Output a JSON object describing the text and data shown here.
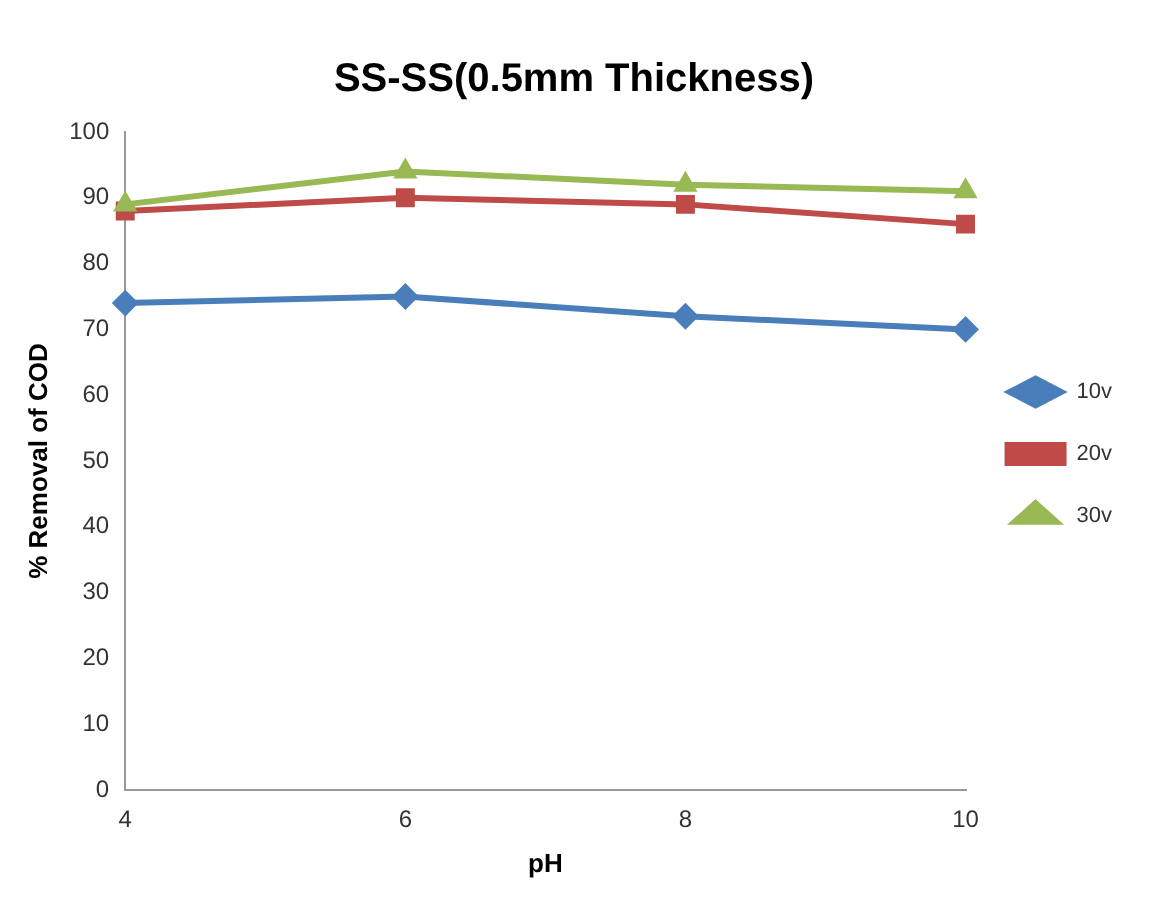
{
  "chart_data": {
    "type": "line",
    "title": "SS-SS(0.5mm Thickness)",
    "xlabel": "pH",
    "ylabel": "% Removal of COD",
    "categories": [
      "4",
      "6",
      "8",
      "10"
    ],
    "series": [
      {
        "name": "10v",
        "color": "#4a7ebb",
        "marker": "diamond",
        "values": [
          74,
          75,
          72,
          70
        ]
      },
      {
        "name": "20v",
        "color": "#be4b48",
        "marker": "square",
        "values": [
          88,
          90,
          89,
          86
        ]
      },
      {
        "name": "30v",
        "color": "#98b954",
        "marker": "triangle",
        "values": [
          89,
          94,
          92,
          91
        ]
      }
    ],
    "ylim": [
      0,
      100
    ],
    "yticks": [
      0,
      10,
      20,
      30,
      40,
      50,
      60,
      70,
      80,
      90,
      100
    ],
    "grid": false,
    "legend": "right",
    "line_style": "solid"
  }
}
